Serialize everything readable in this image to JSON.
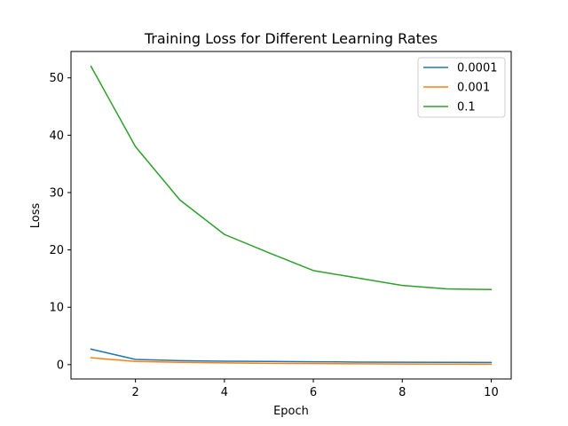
{
  "chart_data": {
    "type": "line",
    "title": "Training Loss for Different Learning Rates",
    "xlabel": "Epoch",
    "ylabel": "Loss",
    "x": [
      1,
      2,
      3,
      4,
      5,
      6,
      7,
      8,
      9,
      10
    ],
    "xlim": [
      0.55,
      10.45
    ],
    "ylim": [
      -2.5,
      54.6
    ],
    "xticks": [
      2,
      4,
      6,
      8,
      10
    ],
    "yticks": [
      0,
      10,
      20,
      30,
      40,
      50
    ],
    "grid": false,
    "legend_position": "top-right",
    "series": [
      {
        "name": "0.0001",
        "color": "#1f77b4",
        "values": [
          2.7,
          0.9,
          0.7,
          0.6,
          0.55,
          0.5,
          0.45,
          0.42,
          0.4,
          0.38
        ]
      },
      {
        "name": "0.001",
        "color": "#ff7f0e",
        "values": [
          1.2,
          0.55,
          0.4,
          0.3,
          0.22,
          0.18,
          0.15,
          0.12,
          0.1,
          0.08
        ]
      },
      {
        "name": "0.1",
        "color": "#2ca02c",
        "values": [
          52.0,
          38.0,
          28.7,
          22.7,
          19.5,
          16.4,
          15.1,
          13.8,
          13.2,
          13.1
        ]
      }
    ]
  }
}
